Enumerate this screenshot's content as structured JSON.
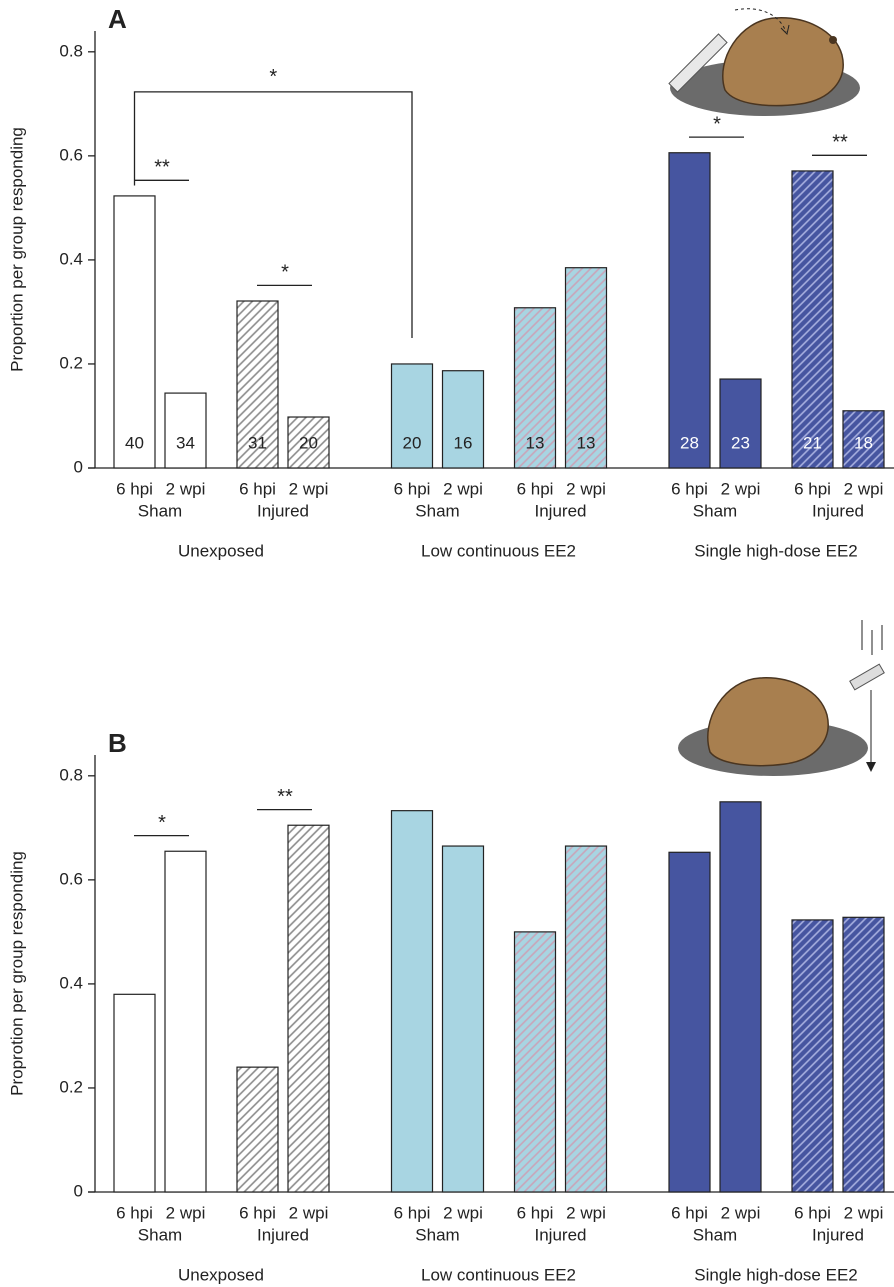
{
  "chart_data": [
    {
      "type": "bar",
      "panel": "A",
      "ylabel": "Proportion per group responding",
      "ylim": [
        0,
        0.84
      ],
      "yticks": [
        0,
        0.2,
        0.4,
        0.6,
        0.8
      ],
      "categories": [
        "6 hpi",
        "2 wpi",
        "6 hpi",
        "2 wpi",
        "6 hpi",
        "2 wpi",
        "6 hpi",
        "2 wpi",
        "6 hpi",
        "2 wpi",
        "6 hpi",
        "2 wpi"
      ],
      "groups": [
        "Sham",
        "Injured",
        "Sham",
        "Injured",
        "Sham",
        "Injured"
      ],
      "exposures": [
        "Unexposed",
        "Low continuous EE2",
        "Single high-dose EE2"
      ],
      "values": [
        0.523,
        0.144,
        0.321,
        0.098,
        0.2,
        0.187,
        0.308,
        0.385,
        0.606,
        0.171,
        0.571,
        0.11
      ],
      "colors": [
        "#ffffff",
        "#ffffff",
        "#ffffff",
        "#ffffff",
        "#a8d5e2",
        "#a8d5e2",
        "#a8d5e2",
        "#a8d5e2",
        "#4655a0",
        "#4655a0",
        "#4655a0",
        "#4655a0"
      ],
      "hatched": [
        false,
        false,
        true,
        true,
        false,
        false,
        true,
        true,
        false,
        false,
        true,
        true
      ],
      "sample_sizes": [
        40,
        34,
        31,
        20,
        20,
        16,
        13,
        13,
        28,
        23,
        21,
        18
      ],
      "significance": [
        {
          "label": "**",
          "bars": [
            0,
            1
          ]
        },
        {
          "label": "*",
          "bars": [
            2,
            3
          ]
        },
        {
          "label": "*",
          "bars": [
            0,
            4
          ]
        },
        {
          "label": "*",
          "bars": [
            8,
            9
          ]
        },
        {
          "label": "**",
          "bars": [
            10,
            11
          ]
        }
      ]
    },
    {
      "type": "bar",
      "panel": "B",
      "ylabel": "Proprotion per group responding",
      "ylim": [
        0,
        0.84
      ],
      "yticks": [
        0,
        0.2,
        0.4,
        0.6,
        0.8
      ],
      "categories": [
        "6 hpi",
        "2 wpi",
        "6 hpi",
        "2 wpi",
        "6 hpi",
        "2 wpi",
        "6 hpi",
        "2 wpi",
        "6 hpi",
        "2 wpi",
        "6 hpi",
        "2 wpi"
      ],
      "groups": [
        "Sham",
        "Injured",
        "Sham",
        "Injured",
        "Sham",
        "Injured"
      ],
      "exposures": [
        "Unexposed",
        "Low continuous EE2",
        "Single high-dose EE2"
      ],
      "values": [
        0.38,
        0.655,
        0.24,
        0.705,
        0.733,
        0.665,
        0.5,
        0.665,
        0.653,
        0.75,
        0.523,
        0.528
      ],
      "colors": [
        "#ffffff",
        "#ffffff",
        "#ffffff",
        "#ffffff",
        "#a8d5e2",
        "#a8d5e2",
        "#a8d5e2",
        "#a8d5e2",
        "#4655a0",
        "#4655a0",
        "#4655a0",
        "#4655a0"
      ],
      "hatched": [
        false,
        false,
        true,
        true,
        false,
        false,
        true,
        true,
        false,
        false,
        true,
        true
      ],
      "significance": [
        {
          "label": "*",
          "bars": [
            0,
            1
          ]
        },
        {
          "label": "**",
          "bars": [
            2,
            3
          ]
        }
      ]
    }
  ]
}
